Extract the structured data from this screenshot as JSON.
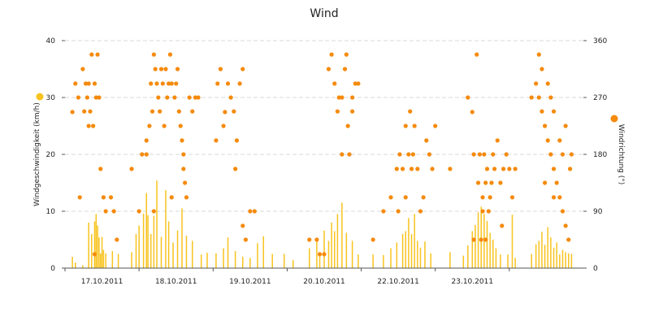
{
  "chart_data": {
    "type": "bar",
    "title": "Wind",
    "x": {
      "tick_labels": [
        "17.10.2011",
        "18.10.2011",
        "19.10.2011",
        "20.10.2011",
        "22.10.2011",
        "23.10.2011"
      ]
    },
    "y_left": {
      "label": "Windgeschwindigkeit (km/h)",
      "range": [
        0,
        40
      ],
      "ticks": [
        "0",
        "10",
        "20",
        "30",
        "40"
      ]
    },
    "y_right": {
      "label": "Windrichtung (°)",
      "range": [
        0,
        360
      ],
      "ticks": [
        "0",
        "90",
        "180",
        "270",
        "360"
      ]
    },
    "grid": "horizontal dashed",
    "colors": {
      "speed": "#f8c31f",
      "direction": "#f58a0c"
    },
    "series": [
      {
        "type": "bar",
        "axis": "left",
        "values": [
          [
            0.5,
            2
          ],
          [
            0.7,
            1
          ],
          [
            1.2,
            0.5
          ],
          [
            1.6,
            8
          ],
          [
            1.8,
            6
          ],
          [
            2.0,
            8.2
          ],
          [
            2.1,
            9.5
          ],
          [
            2.2,
            7.5
          ],
          [
            2.3,
            5.4
          ],
          [
            2.4,
            2.6
          ],
          [
            2.5,
            5.5
          ],
          [
            2.6,
            3.2
          ],
          [
            2.75,
            2.6
          ],
          [
            3.2,
            3
          ],
          [
            3.6,
            2.5
          ],
          [
            4.5,
            2.8
          ],
          [
            4.8,
            6
          ],
          [
            5.0,
            7.5
          ],
          [
            5.3,
            9.6
          ],
          [
            5.5,
            13.2
          ],
          [
            5.6,
            9.3
          ],
          [
            5.8,
            6
          ],
          [
            6.0,
            9.2
          ],
          [
            6.2,
            15.4
          ],
          [
            6.5,
            5.5
          ],
          [
            6.8,
            13.7
          ],
          [
            7.0,
            8.2
          ],
          [
            7.3,
            4.5
          ],
          [
            7.6,
            6.6
          ],
          [
            7.9,
            10.5
          ],
          [
            8.2,
            5.7
          ],
          [
            8.6,
            4.8
          ],
          [
            9.2,
            2.4
          ],
          [
            9.6,
            2.7
          ],
          [
            10.2,
            2.6
          ],
          [
            10.7,
            3.5
          ],
          [
            11.0,
            5.4
          ],
          [
            11.5,
            3
          ],
          [
            12.0,
            2
          ],
          [
            12.5,
            1.8
          ],
          [
            13.0,
            4.4
          ],
          [
            13.4,
            5.6
          ],
          [
            14.0,
            2.5
          ],
          [
            14.8,
            2.5
          ],
          [
            15.4,
            1.4
          ],
          [
            16.5,
            3.5
          ],
          [
            17.0,
            4.6
          ],
          [
            17.2,
            2.5
          ],
          [
            17.5,
            6.6
          ],
          [
            17.8,
            4.8
          ],
          [
            18.0,
            8
          ],
          [
            18.2,
            6.5
          ],
          [
            18.4,
            9.5
          ],
          [
            18.7,
            11.5
          ],
          [
            19.0,
            6.2
          ],
          [
            19.4,
            4.8
          ],
          [
            19.8,
            2.4
          ],
          [
            20.8,
            2.4
          ],
          [
            21.5,
            2.3
          ],
          [
            22.0,
            3.5
          ],
          [
            22.4,
            4.5
          ],
          [
            22.8,
            6
          ],
          [
            23.0,
            6.5
          ],
          [
            23.2,
            8.8
          ],
          [
            23.4,
            6
          ],
          [
            23.6,
            9.5
          ],
          [
            23.8,
            4.8
          ],
          [
            24.0,
            3.6
          ],
          [
            24.3,
            4.7
          ],
          [
            24.7,
            2.6
          ],
          [
            26.0,
            2.8
          ],
          [
            26.9,
            2.2
          ],
          [
            27.2,
            4
          ],
          [
            27.5,
            6.5
          ],
          [
            27.7,
            7.6
          ],
          [
            27.9,
            9.8
          ],
          [
            28.1,
            10.8
          ],
          [
            28.3,
            9.5
          ],
          [
            28.5,
            8.3
          ],
          [
            28.7,
            6.2
          ],
          [
            28.9,
            5
          ],
          [
            29.1,
            3.5
          ],
          [
            29.4,
            2.4
          ],
          [
            29.9,
            2.4
          ],
          [
            30.2,
            9.4
          ],
          [
            30.4,
            1.8
          ],
          [
            31.5,
            2.5
          ],
          [
            31.8,
            4.2
          ],
          [
            32.0,
            4.8
          ],
          [
            32.2,
            6.4
          ],
          [
            32.4,
            4.1
          ],
          [
            32.6,
            7.2
          ],
          [
            32.8,
            5.4
          ],
          [
            33.0,
            3.6
          ],
          [
            33.2,
            4.5
          ],
          [
            33.4,
            2.4
          ],
          [
            33.6,
            3.2
          ],
          [
            33.8,
            2.8
          ],
          [
            34.0,
            2.6
          ],
          [
            34.2,
            2.5
          ]
        ]
      },
      {
        "type": "scatter",
        "axis": "right",
        "values": [
          [
            0.5,
            247
          ],
          [
            0.7,
            292
          ],
          [
            0.9,
            270
          ],
          [
            1.2,
            315
          ],
          [
            1.3,
            248
          ],
          [
            1.4,
            292
          ],
          [
            1.5,
            270
          ],
          [
            1.6,
            292
          ],
          [
            1.7,
            248
          ],
          [
            1.8,
            338
          ],
          [
            1.9,
            225
          ],
          [
            2.0,
            292
          ],
          [
            2.1,
            270
          ],
          [
            2.2,
            338
          ],
          [
            2.3,
            270
          ],
          [
            2.4,
            157
          ],
          [
            2.6,
            112
          ],
          [
            2.75,
            90
          ],
          [
            3.1,
            112
          ],
          [
            3.3,
            90
          ],
          [
            3.5,
            45
          ],
          [
            1.0,
            112
          ],
          [
            1.6,
            225
          ],
          [
            2.0,
            22
          ],
          [
            4.5,
            157
          ],
          [
            5.0,
            90
          ],
          [
            5.2,
            180
          ],
          [
            5.5,
            202
          ],
          [
            5.7,
            225
          ],
          [
            5.8,
            292
          ],
          [
            5.9,
            248
          ],
          [
            6.0,
            338
          ],
          [
            6.1,
            315
          ],
          [
            6.2,
            292
          ],
          [
            6.3,
            270
          ],
          [
            6.4,
            248
          ],
          [
            6.5,
            315
          ],
          [
            6.6,
            292
          ],
          [
            6.7,
            225
          ],
          [
            6.8,
            315
          ],
          [
            6.9,
            270
          ],
          [
            7.0,
            292
          ],
          [
            7.1,
            338
          ],
          [
            7.2,
            292
          ],
          [
            7.4,
            270
          ],
          [
            7.5,
            292
          ],
          [
            7.6,
            315
          ],
          [
            7.7,
            248
          ],
          [
            7.8,
            225
          ],
          [
            7.9,
            202
          ],
          [
            8.0,
            157
          ],
          [
            8.1,
            135
          ],
          [
            8.2,
            112
          ],
          [
            8.4,
            270
          ],
          [
            8.6,
            248
          ],
          [
            8.8,
            270
          ],
          [
            9.0,
            270
          ],
          [
            8.0,
            180
          ],
          [
            7.2,
            112
          ],
          [
            6.0,
            90
          ],
          [
            5.5,
            180
          ],
          [
            10.2,
            202
          ],
          [
            10.3,
            292
          ],
          [
            10.5,
            315
          ],
          [
            10.7,
            225
          ],
          [
            10.8,
            247
          ],
          [
            11.0,
            292
          ],
          [
            11.2,
            270
          ],
          [
            11.4,
            248
          ],
          [
            11.6,
            202
          ],
          [
            11.8,
            292
          ],
          [
            12.0,
            67
          ],
          [
            12.2,
            45
          ],
          [
            12.5,
            90
          ],
          [
            12.8,
            90
          ],
          [
            11.5,
            157
          ],
          [
            12.0,
            315
          ],
          [
            16.5,
            45
          ],
          [
            17.0,
            45
          ],
          [
            17.2,
            22
          ],
          [
            17.5,
            22
          ],
          [
            17.8,
            315
          ],
          [
            18.0,
            338
          ],
          [
            18.2,
            292
          ],
          [
            18.4,
            248
          ],
          [
            18.7,
            270
          ],
          [
            18.9,
            315
          ],
          [
            19.0,
            338
          ],
          [
            19.2,
            180
          ],
          [
            19.4,
            248
          ],
          [
            19.6,
            292
          ],
          [
            19.8,
            292
          ],
          [
            20.8,
            45
          ],
          [
            18.5,
            270
          ],
          [
            18.7,
            180
          ],
          [
            19.4,
            270
          ],
          [
            19.1,
            225
          ],
          [
            21.5,
            90
          ],
          [
            22.0,
            112
          ],
          [
            22.4,
            157
          ],
          [
            22.6,
            180
          ],
          [
            22.8,
            157
          ],
          [
            23.0,
            225
          ],
          [
            23.2,
            180
          ],
          [
            23.3,
            248
          ],
          [
            23.4,
            157
          ],
          [
            23.5,
            180
          ],
          [
            23.6,
            225
          ],
          [
            23.8,
            157
          ],
          [
            24.0,
            90
          ],
          [
            24.2,
            112
          ],
          [
            24.4,
            202
          ],
          [
            24.6,
            180
          ],
          [
            24.8,
            157
          ],
          [
            25.0,
            225
          ],
          [
            22.5,
            90
          ],
          [
            23.0,
            112
          ],
          [
            26.0,
            157
          ],
          [
            27.2,
            270
          ],
          [
            27.5,
            247
          ],
          [
            27.6,
            180
          ],
          [
            27.8,
            338
          ],
          [
            27.9,
            135
          ],
          [
            28.0,
            180
          ],
          [
            28.1,
            45
          ],
          [
            28.2,
            112
          ],
          [
            28.3,
            180
          ],
          [
            28.4,
            135
          ],
          [
            28.5,
            157
          ],
          [
            28.6,
            90
          ],
          [
            28.7,
            112
          ],
          [
            28.8,
            135
          ],
          [
            28.9,
            180
          ],
          [
            29.0,
            157
          ],
          [
            29.2,
            202
          ],
          [
            29.4,
            135
          ],
          [
            29.6,
            157
          ],
          [
            29.8,
            180
          ],
          [
            30.0,
            157
          ],
          [
            30.2,
            112
          ],
          [
            30.4,
            157
          ],
          [
            27.6,
            45
          ],
          [
            28.4,
            45
          ],
          [
            29.5,
            67
          ],
          [
            28.2,
            90
          ],
          [
            31.5,
            270
          ],
          [
            31.8,
            292
          ],
          [
            32.0,
            270
          ],
          [
            32.2,
            248
          ],
          [
            32.4,
            225
          ],
          [
            32.6,
            202
          ],
          [
            32.8,
            180
          ],
          [
            33.0,
            157
          ],
          [
            33.2,
            135
          ],
          [
            33.4,
            112
          ],
          [
            33.6,
            90
          ],
          [
            33.8,
            67
          ],
          [
            34.0,
            45
          ],
          [
            32.0,
            338
          ],
          [
            32.2,
            315
          ],
          [
            32.6,
            292
          ],
          [
            32.8,
            270
          ],
          [
            33.0,
            248
          ],
          [
            33.4,
            202
          ],
          [
            33.6,
            180
          ],
          [
            33.8,
            225
          ],
          [
            34.1,
            157
          ],
          [
            34.2,
            180
          ],
          [
            32.4,
            135
          ],
          [
            33.0,
            112
          ]
        ]
      }
    ]
  }
}
